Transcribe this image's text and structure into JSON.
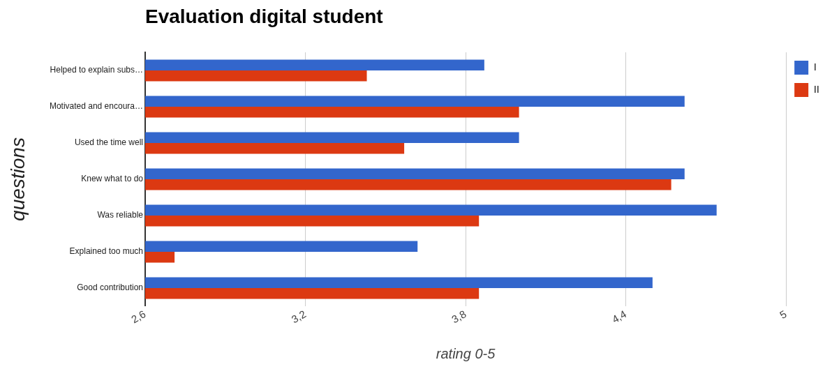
{
  "chart_data": {
    "type": "bar",
    "orientation": "horizontal",
    "title": "Evaluation digital student",
    "xlabel": "rating 0-5",
    "ylabel": "questions",
    "categories": [
      "Helped to explain subs…",
      "Motivated and encoura…",
      "Used the time well",
      "Knew what to do",
      "Was reliable",
      "Explained too much",
      "Good contribution"
    ],
    "series": [
      {
        "name": "I",
        "color": "#3366cc",
        "values": [
          3.87,
          4.62,
          4.0,
          4.62,
          4.74,
          3.62,
          4.5
        ]
      },
      {
        "name": "II",
        "color": "#dc3912",
        "values": [
          3.43,
          4.0,
          3.57,
          4.57,
          3.85,
          2.71,
          3.85
        ]
      }
    ],
    "xlim": [
      2.6,
      5.0
    ],
    "xticks": [
      {
        "value": 2.6,
        "label": "2,6"
      },
      {
        "value": 3.2,
        "label": "3,2"
      },
      {
        "value": 3.8,
        "label": "3,8"
      },
      {
        "value": 4.4,
        "label": "4,4"
      },
      5
    ],
    "grid": "x",
    "legend": "top right"
  }
}
